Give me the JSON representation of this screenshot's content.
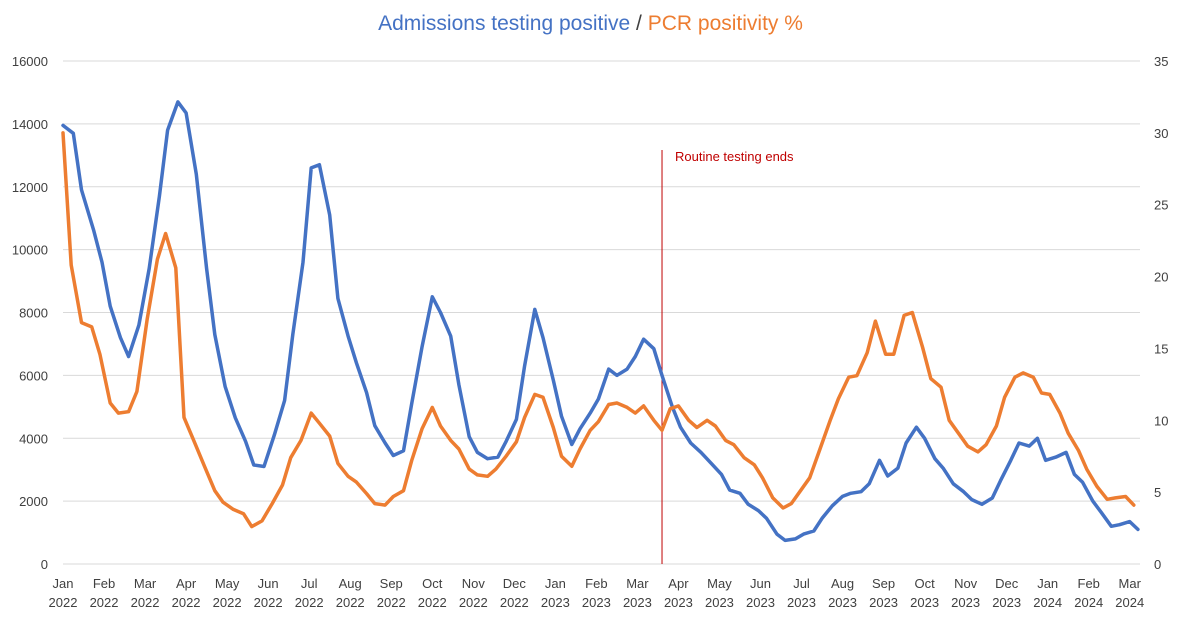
{
  "title": {
    "part1": "Admissions testing positive",
    "sep": " / ",
    "part2": "PCR positivity %"
  },
  "colors": {
    "admissions": "#4472C4",
    "pcr": "#ED7D31",
    "annotation": "#C00000",
    "grid": "#D9D9D9",
    "text": "#404040",
    "separator": "#404040"
  },
  "chart_data": {
    "type": "line",
    "y_left": {
      "ticks": [
        "0",
        "2000",
        "4000",
        "6000",
        "8000",
        "10000",
        "12000",
        "14000",
        "16000"
      ],
      "lim": [
        0,
        16000
      ]
    },
    "y_right": {
      "ticks": [
        "0",
        "5",
        "10",
        "15",
        "20",
        "25",
        "30",
        "35"
      ],
      "lim": [
        0,
        35
      ]
    },
    "x_months": [
      {
        "m": "Jan",
        "y": "2022"
      },
      {
        "m": "Feb",
        "y": "2022"
      },
      {
        "m": "Mar",
        "y": "2022"
      },
      {
        "m": "Apr",
        "y": "2022"
      },
      {
        "m": "May",
        "y": "2022"
      },
      {
        "m": "Jun",
        "y": "2022"
      },
      {
        "m": "Jul",
        "y": "2022"
      },
      {
        "m": "Aug",
        "y": "2022"
      },
      {
        "m": "Sep",
        "y": "2022"
      },
      {
        "m": "Oct",
        "y": "2022"
      },
      {
        "m": "Nov",
        "y": "2022"
      },
      {
        "m": "Dec",
        "y": "2022"
      },
      {
        "m": "Jan",
        "y": "2023"
      },
      {
        "m": "Feb",
        "y": "2023"
      },
      {
        "m": "Mar",
        "y": "2023"
      },
      {
        "m": "Apr",
        "y": "2023"
      },
      {
        "m": "May",
        "y": "2023"
      },
      {
        "m": "Jun",
        "y": "2023"
      },
      {
        "m": "Jul",
        "y": "2023"
      },
      {
        "m": "Aug",
        "y": "2023"
      },
      {
        "m": "Sep",
        "y": "2023"
      },
      {
        "m": "Oct",
        "y": "2023"
      },
      {
        "m": "Nov",
        "y": "2023"
      },
      {
        "m": "Dec",
        "y": "2023"
      },
      {
        "m": "Jan",
        "y": "2024"
      },
      {
        "m": "Feb",
        "y": "2024"
      },
      {
        "m": "Mar",
        "y": "2024"
      }
    ],
    "annotation": {
      "text": "Routine testing ends",
      "x_month": 14.6
    },
    "series": [
      {
        "name": "Admissions testing positive",
        "axis": "left",
        "points": [
          [
            0,
            13950
          ],
          [
            0.25,
            13700
          ],
          [
            0.45,
            11900
          ],
          [
            0.75,
            10600
          ],
          [
            0.95,
            9600
          ],
          [
            1.15,
            8200
          ],
          [
            1.4,
            7200
          ],
          [
            1.6,
            6600
          ],
          [
            1.85,
            7600
          ],
          [
            2.1,
            9400
          ],
          [
            2.35,
            11700
          ],
          [
            2.55,
            13800
          ],
          [
            2.8,
            14700
          ],
          [
            3.0,
            14350
          ],
          [
            3.25,
            12400
          ],
          [
            3.5,
            9400
          ],
          [
            3.7,
            7300
          ],
          [
            3.95,
            5650
          ],
          [
            4.2,
            4650
          ],
          [
            4.45,
            3900
          ],
          [
            4.65,
            3150
          ],
          [
            4.9,
            3100
          ],
          [
            5.15,
            4100
          ],
          [
            5.4,
            5200
          ],
          [
            5.6,
            7300
          ],
          [
            5.85,
            9600
          ],
          [
            6.05,
            12600
          ],
          [
            6.25,
            12700
          ],
          [
            6.5,
            11100
          ],
          [
            6.7,
            8450
          ],
          [
            6.95,
            7250
          ],
          [
            7.15,
            6400
          ],
          [
            7.4,
            5450
          ],
          [
            7.6,
            4400
          ],
          [
            7.85,
            3850
          ],
          [
            8.05,
            3450
          ],
          [
            8.3,
            3600
          ],
          [
            8.5,
            5100
          ],
          [
            8.75,
            6900
          ],
          [
            9.0,
            8500
          ],
          [
            9.2,
            8000
          ],
          [
            9.45,
            7250
          ],
          [
            9.65,
            5700
          ],
          [
            9.9,
            4050
          ],
          [
            10.1,
            3550
          ],
          [
            10.35,
            3350
          ],
          [
            10.6,
            3400
          ],
          [
            10.8,
            3900
          ],
          [
            11.05,
            4600
          ],
          [
            11.25,
            6300
          ],
          [
            11.5,
            8100
          ],
          [
            11.7,
            7200
          ],
          [
            11.95,
            5850
          ],
          [
            12.15,
            4700
          ],
          [
            12.4,
            3800
          ],
          [
            12.6,
            4300
          ],
          [
            12.85,
            4800
          ],
          [
            13.05,
            5250
          ],
          [
            13.3,
            6200
          ],
          [
            13.5,
            6000
          ],
          [
            13.75,
            6200
          ],
          [
            13.95,
            6600
          ],
          [
            14.15,
            7150
          ],
          [
            14.4,
            6850
          ],
          [
            14.6,
            6000
          ],
          [
            14.85,
            5000
          ],
          [
            15.05,
            4350
          ],
          [
            15.3,
            3850
          ],
          [
            15.55,
            3550
          ],
          [
            15.8,
            3200
          ],
          [
            16.05,
            2850
          ],
          [
            16.25,
            2350
          ],
          [
            16.5,
            2250
          ],
          [
            16.7,
            1900
          ],
          [
            16.95,
            1700
          ],
          [
            17.15,
            1450
          ],
          [
            17.4,
            950
          ],
          [
            17.6,
            750
          ],
          [
            17.85,
            800
          ],
          [
            18.05,
            950
          ],
          [
            18.3,
            1050
          ],
          [
            18.5,
            1450
          ],
          [
            18.75,
            1850
          ],
          [
            19.0,
            2150
          ],
          [
            19.2,
            2250
          ],
          [
            19.45,
            2300
          ],
          [
            19.65,
            2550
          ],
          [
            19.9,
            3300
          ],
          [
            20.1,
            2800
          ],
          [
            20.35,
            3050
          ],
          [
            20.55,
            3850
          ],
          [
            20.8,
            4350
          ],
          [
            21.0,
            4000
          ],
          [
            21.25,
            3350
          ],
          [
            21.45,
            3050
          ],
          [
            21.7,
            2550
          ],
          [
            21.95,
            2300
          ],
          [
            22.15,
            2050
          ],
          [
            22.4,
            1900
          ],
          [
            22.65,
            2100
          ],
          [
            22.85,
            2650
          ],
          [
            23.1,
            3300
          ],
          [
            23.3,
            3850
          ],
          [
            23.55,
            3750
          ],
          [
            23.75,
            4000
          ],
          [
            23.95,
            3300
          ],
          [
            24.2,
            3400
          ],
          [
            24.45,
            3550
          ],
          [
            24.65,
            2850
          ],
          [
            24.85,
            2600
          ],
          [
            25.1,
            2000
          ],
          [
            25.3,
            1650
          ],
          [
            25.55,
            1200
          ],
          [
            25.75,
            1250
          ],
          [
            26.0,
            1350
          ],
          [
            26.2,
            1100
          ]
        ]
      },
      {
        "name": "PCR positivity %",
        "axis": "right",
        "points": [
          [
            0,
            30.0
          ],
          [
            0.2,
            20.8
          ],
          [
            0.45,
            16.8
          ],
          [
            0.7,
            16.5
          ],
          [
            0.9,
            14.6
          ],
          [
            1.15,
            11.2
          ],
          [
            1.35,
            10.5
          ],
          [
            1.6,
            10.6
          ],
          [
            1.8,
            12.0
          ],
          [
            2.05,
            17.0
          ],
          [
            2.3,
            21.2
          ],
          [
            2.5,
            23.0
          ],
          [
            2.75,
            20.6
          ],
          [
            2.95,
            10.2
          ],
          [
            3.2,
            8.5
          ],
          [
            3.45,
            6.8
          ],
          [
            3.7,
            5.1
          ],
          [
            3.9,
            4.3
          ],
          [
            4.15,
            3.8
          ],
          [
            4.4,
            3.5
          ],
          [
            4.6,
            2.6
          ],
          [
            4.85,
            3.0
          ],
          [
            5.1,
            4.2
          ],
          [
            5.35,
            5.5
          ],
          [
            5.55,
            7.4
          ],
          [
            5.8,
            8.6
          ],
          [
            6.05,
            10.5
          ],
          [
            6.25,
            9.8
          ],
          [
            6.5,
            8.9
          ],
          [
            6.7,
            7.0
          ],
          [
            6.95,
            6.1
          ],
          [
            7.15,
            5.7
          ],
          [
            7.4,
            4.9
          ],
          [
            7.6,
            4.2
          ],
          [
            7.85,
            4.1
          ],
          [
            8.05,
            4.7
          ],
          [
            8.3,
            5.1
          ],
          [
            8.5,
            7.2
          ],
          [
            8.75,
            9.4
          ],
          [
            9.0,
            10.9
          ],
          [
            9.2,
            9.6
          ],
          [
            9.45,
            8.6
          ],
          [
            9.65,
            8.0
          ],
          [
            9.9,
            6.6
          ],
          [
            10.1,
            6.2
          ],
          [
            10.35,
            6.1
          ],
          [
            10.55,
            6.6
          ],
          [
            10.8,
            7.5
          ],
          [
            11.05,
            8.5
          ],
          [
            11.25,
            10.2
          ],
          [
            11.5,
            11.8
          ],
          [
            11.7,
            11.6
          ],
          [
            11.95,
            9.5
          ],
          [
            12.15,
            7.5
          ],
          [
            12.4,
            6.8
          ],
          [
            12.6,
            8.0
          ],
          [
            12.85,
            9.3
          ],
          [
            13.05,
            9.9
          ],
          [
            13.3,
            11.1
          ],
          [
            13.5,
            11.2
          ],
          [
            13.75,
            10.9
          ],
          [
            13.95,
            10.5
          ],
          [
            14.15,
            11.0
          ],
          [
            14.4,
            10.0
          ],
          [
            14.6,
            9.3
          ],
          [
            14.8,
            10.8
          ],
          [
            15.0,
            11.0
          ],
          [
            15.25,
            10.0
          ],
          [
            15.45,
            9.5
          ],
          [
            15.7,
            10.0
          ],
          [
            15.9,
            9.6
          ],
          [
            16.15,
            8.6
          ],
          [
            16.35,
            8.3
          ],
          [
            16.6,
            7.4
          ],
          [
            16.85,
            6.9
          ],
          [
            17.05,
            6.0
          ],
          [
            17.3,
            4.6
          ],
          [
            17.55,
            3.9
          ],
          [
            17.75,
            4.2
          ],
          [
            18.0,
            5.2
          ],
          [
            18.2,
            6.0
          ],
          [
            18.45,
            8.0
          ],
          [
            18.7,
            10.0
          ],
          [
            18.9,
            11.5
          ],
          [
            19.15,
            13.0
          ],
          [
            19.35,
            13.1
          ],
          [
            19.6,
            14.7
          ],
          [
            19.8,
            16.9
          ],
          [
            20.05,
            14.6
          ],
          [
            20.25,
            14.6
          ],
          [
            20.5,
            17.3
          ],
          [
            20.7,
            17.5
          ],
          [
            20.95,
            15.1
          ],
          [
            21.15,
            12.9
          ],
          [
            21.4,
            12.3
          ],
          [
            21.6,
            10.0
          ],
          [
            21.85,
            9.0
          ],
          [
            22.05,
            8.2
          ],
          [
            22.3,
            7.8
          ],
          [
            22.5,
            8.3
          ],
          [
            22.75,
            9.6
          ],
          [
            22.95,
            11.6
          ],
          [
            23.2,
            13.0
          ],
          [
            23.4,
            13.3
          ],
          [
            23.65,
            13.0
          ],
          [
            23.85,
            11.9
          ],
          [
            24.05,
            11.8
          ],
          [
            24.3,
            10.5
          ],
          [
            24.5,
            9.1
          ],
          [
            24.75,
            7.9
          ],
          [
            24.95,
            6.6
          ],
          [
            25.2,
            5.4
          ],
          [
            25.45,
            4.5
          ],
          [
            25.65,
            4.6
          ],
          [
            25.9,
            4.7
          ],
          [
            26.1,
            4.1
          ]
        ]
      }
    ]
  }
}
